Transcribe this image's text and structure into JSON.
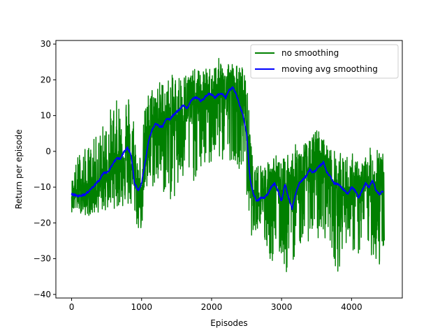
{
  "chart_data": {
    "type": "line",
    "title": "",
    "xlabel": "Episodes",
    "ylabel": "Return per episode",
    "xlim": [
      -225,
      4725
    ],
    "ylim": [
      -41,
      31
    ],
    "xticks": [
      0,
      1000,
      2000,
      3000,
      4000
    ],
    "yticks": [
      -40,
      -30,
      -20,
      -10,
      0,
      10,
      20,
      30
    ],
    "grid": false,
    "legend_position": "top-right",
    "series": [
      {
        "name": "no smoothing",
        "color": "#008000",
        "style": "noisy",
        "x": [
          0,
          100,
          200,
          300,
          400,
          500,
          600,
          700,
          800,
          900,
          950,
          1000,
          1050,
          1100,
          1200,
          1300,
          1400,
          1500,
          1600,
          1700,
          1800,
          1900,
          2000,
          2100,
          2200,
          2300,
          2400,
          2480,
          2550,
          2600,
          2700,
          2800,
          2900,
          3000,
          3100,
          3200,
          3300,
          3400,
          3500,
          3600,
          3700,
          3800,
          3900,
          4000,
          4100,
          4200,
          4300,
          4400,
          4470
        ],
        "center": [
          -12,
          -12,
          -13,
          -12,
          -10,
          -7,
          -4,
          -3,
          -1,
          -8,
          -12,
          -10,
          -2,
          4,
          7,
          8,
          8,
          10,
          12,
          13,
          14,
          14,
          16,
          15,
          16,
          17,
          14,
          13,
          -5,
          -14,
          -12,
          -12,
          -8,
          -14,
          -9,
          -10,
          -7,
          -5,
          -5,
          -4,
          -9,
          -11,
          -12,
          -11,
          -12,
          -10,
          -11,
          -8,
          -12
        ],
        "upper": [
          -8,
          0,
          1,
          3,
          6,
          10,
          14,
          15,
          18,
          10,
          -2,
          2,
          13,
          17,
          20,
          20,
          21,
          22,
          22,
          23,
          23,
          23,
          24,
          26,
          27,
          25,
          24,
          24,
          8,
          -6,
          -2,
          -3,
          0,
          -3,
          1,
          2,
          3,
          3,
          7,
          4,
          1,
          0,
          -1,
          0,
          -3,
          -1,
          2,
          5,
          -3
        ],
        "lower": [
          -17,
          -17,
          -18,
          -18,
          -17,
          -17,
          -16,
          -16,
          -16,
          -18,
          -23,
          -22,
          -15,
          -12,
          -10,
          -12,
          -14,
          -14,
          -10,
          -9,
          -8,
          -5,
          -5,
          -3,
          -4,
          -2,
          -5,
          -8,
          -25,
          -22,
          -22,
          -30,
          -33,
          -30,
          -37,
          -28,
          -26,
          -25,
          -26,
          -24,
          -26,
          -35,
          -25,
          -28,
          -30,
          -26,
          -30,
          -34,
          -28
        ]
      },
      {
        "name": "moving avg smoothing",
        "color": "#0000ff",
        "x": [
          0,
          100,
          200,
          300,
          400,
          450,
          500,
          550,
          600,
          650,
          700,
          750,
          800,
          850,
          900,
          950,
          1000,
          1050,
          1100,
          1150,
          1200,
          1250,
          1300,
          1350,
          1400,
          1450,
          1500,
          1550,
          1600,
          1650,
          1700,
          1750,
          1800,
          1850,
          1900,
          1950,
          2000,
          2050,
          2100,
          2150,
          2200,
          2250,
          2300,
          2350,
          2400,
          2450,
          2500,
          2550,
          2600,
          2650,
          2700,
          2750,
          2800,
          2850,
          2900,
          2950,
          3000,
          3050,
          3100,
          3150,
          3200,
          3250,
          3300,
          3350,
          3400,
          3450,
          3500,
          3550,
          3600,
          3650,
          3700,
          3750,
          3800,
          3850,
          3900,
          3950,
          4000,
          4050,
          4100,
          4150,
          4200,
          4250,
          4300,
          4350,
          4400,
          4450
        ],
        "y": [
          -12,
          -12.5,
          -12,
          -10,
          -8,
          -6,
          -6,
          -5,
          -3,
          -2,
          -2,
          0,
          1,
          -1,
          -9,
          -11,
          -9,
          -3,
          3,
          6,
          8,
          7,
          7,
          9,
          9,
          10,
          11,
          12,
          13,
          12,
          14,
          15,
          15,
          14,
          15,
          16,
          16,
          15,
          16,
          16,
          15,
          17,
          18,
          16,
          13,
          10,
          5,
          -8,
          -12,
          -14,
          -13,
          -13,
          -12,
          -10,
          -9,
          -11,
          -14,
          -9,
          -13,
          -16,
          -12,
          -9,
          -8,
          -7,
          -5,
          -6,
          -5,
          -4,
          -3,
          -6,
          -7,
          -9,
          -9,
          -10,
          -11,
          -12,
          -10,
          -11,
          -13,
          -11,
          -9,
          -10,
          -8,
          -11,
          -12,
          -11
        ]
      }
    ]
  }
}
